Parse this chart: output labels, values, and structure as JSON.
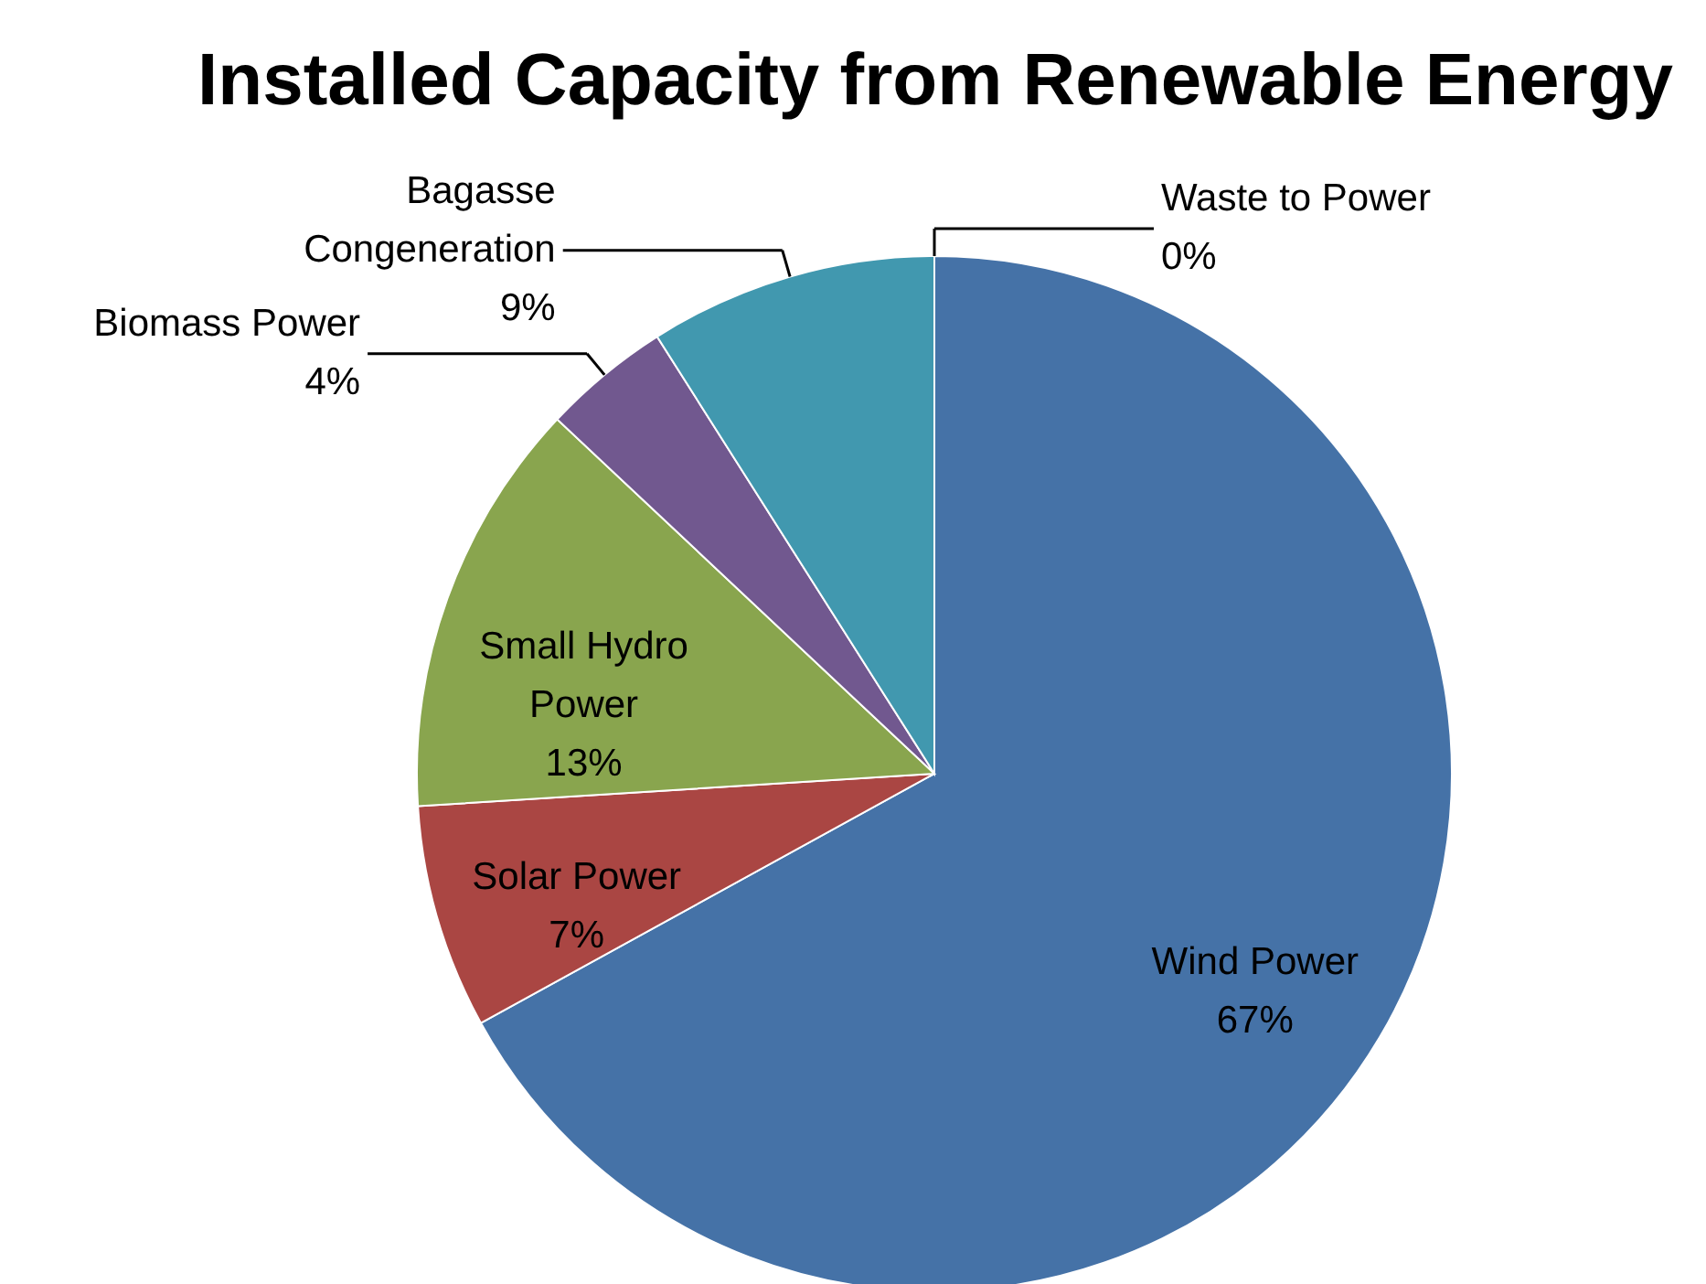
{
  "chart_data": {
    "type": "pie",
    "title": "Installed Capacity from Renewable Energy",
    "categories": [
      "Wind Power",
      "Solar Power",
      "Small Hydro Power",
      "Biomass Power",
      "Bagasse Congeneration",
      "Waste to Power"
    ],
    "values": [
      67,
      7,
      13,
      4,
      9,
      0
    ],
    "colors": [
      "#4572a7",
      "#aa4643",
      "#89a54e",
      "#71588f",
      "#4198af",
      "#db843d"
    ],
    "value_labels": [
      "67%",
      "7%",
      "13%",
      "4%",
      "9%",
      "0%"
    ]
  }
}
